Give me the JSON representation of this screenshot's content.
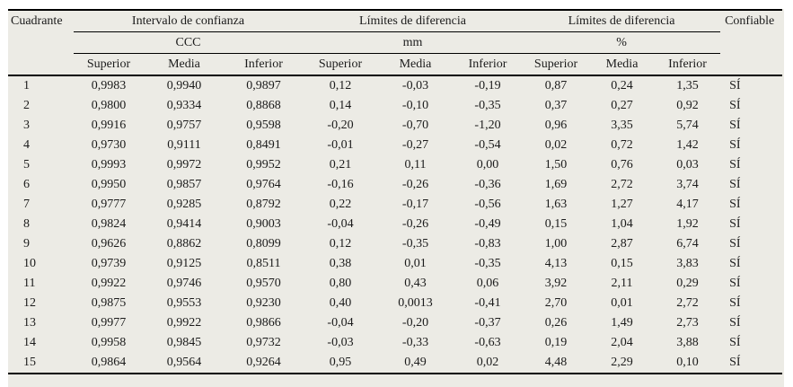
{
  "chart_data": {
    "type": "table",
    "row_header": "Cuadrante",
    "confiable_header": "Confiable",
    "groups": [
      {
        "label": "Intervalo de confianza",
        "unit": "CCC"
      },
      {
        "label": "Límites de diferencia",
        "unit": "mm"
      },
      {
        "label": "Límites de diferencia",
        "unit": "%"
      }
    ],
    "subheaders": [
      "Superior",
      "Media",
      "Inferior"
    ],
    "rows": [
      {
        "cuadrante": "1",
        "ccc": [
          "0,9983",
          "0,9940",
          "0,9897"
        ],
        "mm": [
          "0,12",
          "-0,03",
          "-0,19"
        ],
        "pct": [
          "0,87",
          "0,24",
          "1,35"
        ],
        "confiable": "SÍ"
      },
      {
        "cuadrante": "2",
        "ccc": [
          "0,9800",
          "0,9334",
          "0,8868"
        ],
        "mm": [
          "0,14",
          "-0,10",
          "-0,35"
        ],
        "pct": [
          "0,37",
          "0,27",
          "0,92"
        ],
        "confiable": "SÍ"
      },
      {
        "cuadrante": "3",
        "ccc": [
          "0,9916",
          "0,9757",
          "0,9598"
        ],
        "mm": [
          "-0,20",
          "-0,70",
          "-1,20"
        ],
        "pct": [
          "0,96",
          "3,35",
          "5,74"
        ],
        "confiable": "SÍ"
      },
      {
        "cuadrante": "4",
        "ccc": [
          "0,9730",
          "0,9111",
          "0,8491"
        ],
        "mm": [
          "-0,01",
          "-0,27",
          "-0,54"
        ],
        "pct": [
          "0,02",
          "0,72",
          "1,42"
        ],
        "confiable": "SÍ"
      },
      {
        "cuadrante": "5",
        "ccc": [
          "0,9993",
          "0,9972",
          "0,9952"
        ],
        "mm": [
          "0,21",
          "0,11",
          "0,00"
        ],
        "pct": [
          "1,50",
          "0,76",
          "0,03"
        ],
        "confiable": "SÍ"
      },
      {
        "cuadrante": "6",
        "ccc": [
          "0,9950",
          "0,9857",
          "0,9764"
        ],
        "mm": [
          "-0,16",
          "-0,26",
          "-0,36"
        ],
        "pct": [
          "1,69",
          "2,72",
          "3,74"
        ],
        "confiable": "SÍ"
      },
      {
        "cuadrante": "7",
        "ccc": [
          "0,9777",
          "0,9285",
          "0,8792"
        ],
        "mm": [
          "0,22",
          "-0,17",
          "-0,56"
        ],
        "pct": [
          "1,63",
          "1,27",
          "4,17"
        ],
        "confiable": "SÍ"
      },
      {
        "cuadrante": "8",
        "ccc": [
          "0,9824",
          "0,9414",
          "0,9003"
        ],
        "mm": [
          "-0,04",
          "-0,26",
          "-0,49"
        ],
        "pct": [
          "0,15",
          "1,04",
          "1,92"
        ],
        "confiable": "SÍ"
      },
      {
        "cuadrante": "9",
        "ccc": [
          "0,9626",
          "0,8862",
          "0,8099"
        ],
        "mm": [
          "0,12",
          "-0,35",
          "-0,83"
        ],
        "pct": [
          "1,00",
          "2,87",
          "6,74"
        ],
        "confiable": "SÍ"
      },
      {
        "cuadrante": "10",
        "ccc": [
          "0,9739",
          "0,9125",
          "0,8511"
        ],
        "mm": [
          "0,38",
          "0,01",
          "-0,35"
        ],
        "pct": [
          "4,13",
          "0,15",
          "3,83"
        ],
        "confiable": "SÍ"
      },
      {
        "cuadrante": "11",
        "ccc": [
          "0,9922",
          "0,9746",
          "0,9570"
        ],
        "mm": [
          "0,80",
          "0,43",
          "0,06"
        ],
        "pct": [
          "3,92",
          "2,11",
          "0,29"
        ],
        "confiable": "SÍ"
      },
      {
        "cuadrante": "12",
        "ccc": [
          "0,9875",
          "0,9553",
          "0,9230"
        ],
        "mm": [
          "0,40",
          "0,0013",
          "-0,41"
        ],
        "pct": [
          "2,70",
          "0,01",
          "2,72"
        ],
        "confiable": "SÍ"
      },
      {
        "cuadrante": "13",
        "ccc": [
          "0,9977",
          "0,9922",
          "0,9866"
        ],
        "mm": [
          "-0,04",
          "-0,20",
          "-0,37"
        ],
        "pct": [
          "0,26",
          "1,49",
          "2,73"
        ],
        "confiable": "SÍ"
      },
      {
        "cuadrante": "14",
        "ccc": [
          "0,9958",
          "0,9845",
          "0,9732"
        ],
        "mm": [
          "-0,03",
          "-0,33",
          "-0,63"
        ],
        "pct": [
          "0,19",
          "2,04",
          "3,88"
        ],
        "confiable": "SÍ"
      },
      {
        "cuadrante": "15",
        "ccc": [
          "0,9864",
          "0,9564",
          "0,9264"
        ],
        "mm": [
          "0,95",
          "0,49",
          "0,02"
        ],
        "pct": [
          "4,48",
          "2,29",
          "0,10"
        ],
        "confiable": "SÍ"
      }
    ]
  },
  "colors": {
    "panel_background": "#ecebe5",
    "rule": "#000000",
    "text": "#1b1b1b"
  }
}
